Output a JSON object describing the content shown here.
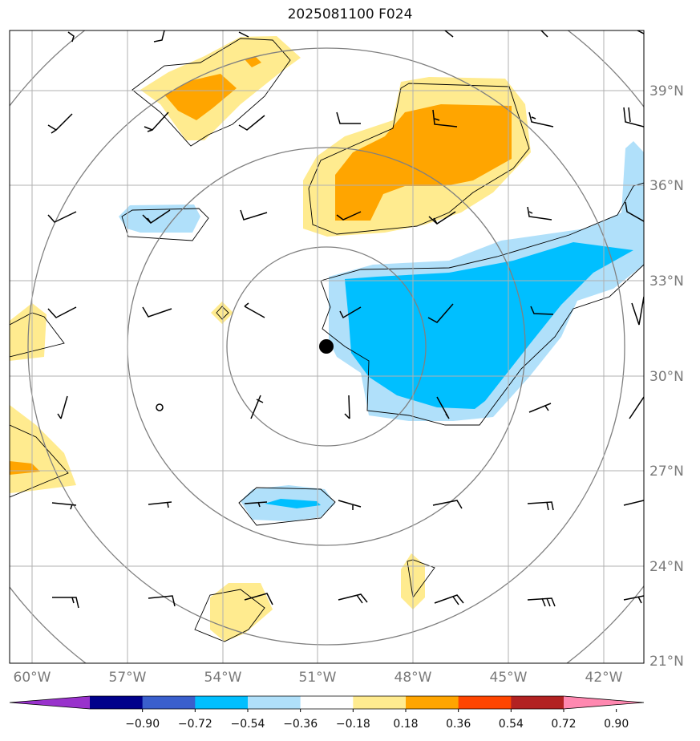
{
  "title": "2025081100 F024",
  "colors": {
    "neg_strong": "#00bfff",
    "neg_light": "#b0e0fa",
    "pos_light": "#ffeb8f",
    "pos_strong": "#ffa500",
    "contour": "#000000",
    "circles": "#808080",
    "grid": "#b0b0b0"
  },
  "lon_labels": [
    "60°W",
    "57°W",
    "54°W",
    "51°W",
    "48°W",
    "45°W",
    "42°W"
  ],
  "lat_labels": [
    "39°N",
    "36°N",
    "33°N",
    "30°N",
    "27°N",
    "24°N",
    "21°N"
  ],
  "colorbar": {
    "colors": [
      "#9932cc",
      "#00008b",
      "#3a5fcd",
      "#00bfff",
      "#b0e0fa",
      "#ffffff",
      "#ffeb8f",
      "#ffa500",
      "#ff4500",
      "#b22222",
      "#ff88b0"
    ],
    "labels": [
      "−0.90",
      "−0.72",
      "−0.54",
      "−0.36",
      "−0.18",
      "0.18",
      "0.36",
      "0.54",
      "0.72",
      "0.90"
    ]
  },
  "center_marker": "storm-center"
}
